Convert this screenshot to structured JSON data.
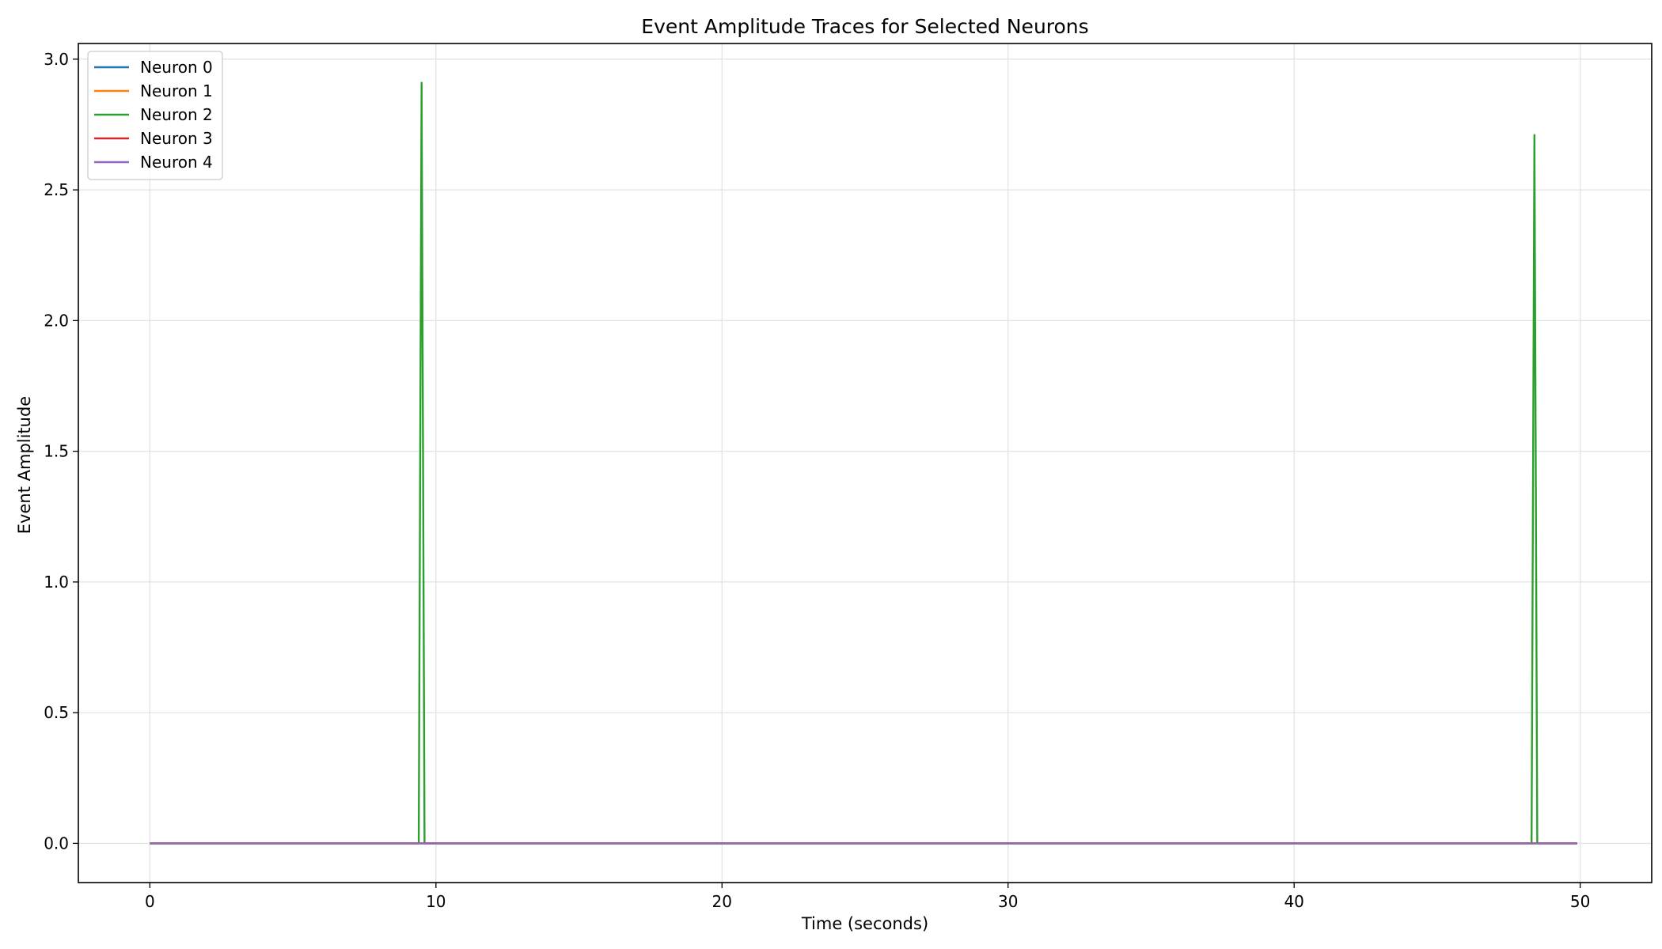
{
  "chart_data": {
    "type": "line",
    "title": "Event Amplitude Traces for Selected Neurons",
    "xlabel": "Time (seconds)",
    "ylabel": "Event Amplitude",
    "xlim": [
      -2.5,
      52.5
    ],
    "ylim": [
      -0.15,
      3.06
    ],
    "xticks": [
      0,
      10,
      20,
      30,
      40,
      50
    ],
    "yticks": [
      0.0,
      0.5,
      1.0,
      1.5,
      2.0,
      2.5,
      3.0
    ],
    "xtick_labels": [
      "0",
      "10",
      "20",
      "30",
      "40",
      "50"
    ],
    "ytick_labels": [
      "0.0",
      "0.5",
      "1.0",
      "1.5",
      "2.0",
      "2.5",
      "3.0"
    ],
    "grid": true,
    "legend_position": "upper-left",
    "series": [
      {
        "name": "Neuron 0",
        "color": "#1f77b4",
        "x": [
          0,
          49.9
        ],
        "y": [
          0,
          0
        ]
      },
      {
        "name": "Neuron 1",
        "color": "#ff7f0e",
        "x": [
          0,
          49.9
        ],
        "y": [
          0,
          0
        ]
      },
      {
        "name": "Neuron 2",
        "color": "#2ca02c",
        "x": [
          0,
          9.4,
          9.5,
          9.6,
          48.3,
          48.4,
          48.5,
          49.9
        ],
        "y": [
          0,
          0,
          2.91,
          0,
          0,
          2.71,
          0,
          0
        ]
      },
      {
        "name": "Neuron 3",
        "color": "#d62728",
        "x": [
          0,
          49.9
        ],
        "y": [
          0,
          0
        ]
      },
      {
        "name": "Neuron 4",
        "color": "#9467bd",
        "x": [
          0,
          49.9
        ],
        "y": [
          0,
          0
        ]
      }
    ]
  }
}
